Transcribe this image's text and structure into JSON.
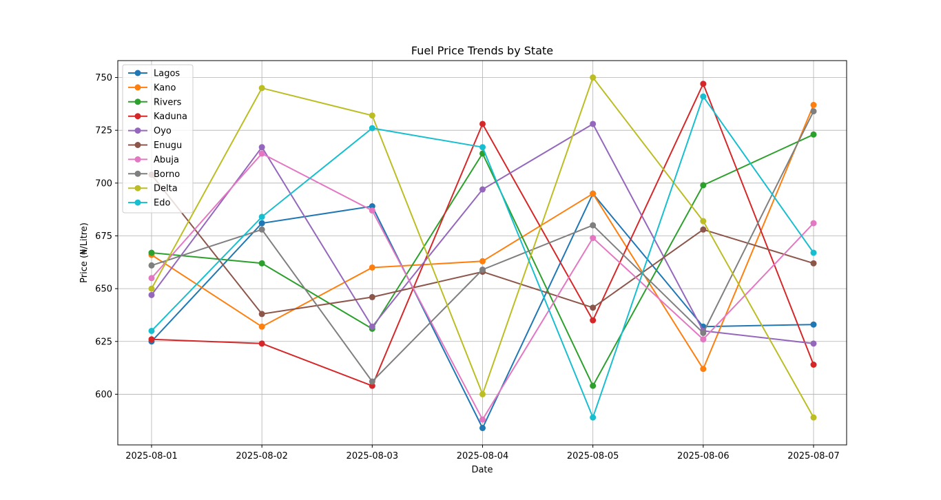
{
  "chart_data": {
    "type": "line",
    "title": "Fuel Price Trends by State",
    "xlabel": "Date",
    "ylabel": "Price (₦/Litre)",
    "x": [
      "2025-08-01",
      "2025-08-02",
      "2025-08-03",
      "2025-08-04",
      "2025-08-05",
      "2025-08-06",
      "2025-08-07"
    ],
    "ylim": [
      576,
      758
    ],
    "yticks": [
      600,
      625,
      650,
      675,
      700,
      725,
      750
    ],
    "grid": true,
    "legend_position": "top-left",
    "series": [
      {
        "name": "Lagos",
        "color": "#1f77b4",
        "values": [
          625,
          681,
          689,
          584,
          695,
          632,
          633
        ]
      },
      {
        "name": "Kano",
        "color": "#ff7f0e",
        "values": [
          666,
          632,
          660,
          663,
          695,
          612,
          737
        ]
      },
      {
        "name": "Rivers",
        "color": "#2ca02c",
        "values": [
          667,
          662,
          631,
          714,
          604,
          699,
          723
        ]
      },
      {
        "name": "Kaduna",
        "color": "#d62728",
        "values": [
          626,
          624,
          604,
          728,
          635,
          747,
          614
        ]
      },
      {
        "name": "Oyo",
        "color": "#9467bd",
        "values": [
          647,
          717,
          632,
          697,
          728,
          630,
          624
        ]
      },
      {
        "name": "Enugu",
        "color": "#8c564b",
        "values": [
          704,
          638,
          646,
          658,
          641,
          678,
          662
        ]
      },
      {
        "name": "Abuja",
        "color": "#e377c2",
        "values": [
          655,
          714,
          687,
          588,
          674,
          626,
          681
        ]
      },
      {
        "name": "Borno",
        "color": "#7f7f7f",
        "values": [
          661,
          678,
          606,
          659,
          680,
          629,
          734
        ]
      },
      {
        "name": "Delta",
        "color": "#bcbd22",
        "values": [
          650,
          745,
          732,
          600,
          750,
          682,
          589
        ]
      },
      {
        "name": "Edo",
        "color": "#17becf",
        "values": [
          630,
          684,
          726,
          717,
          589,
          741,
          667
        ]
      }
    ]
  }
}
